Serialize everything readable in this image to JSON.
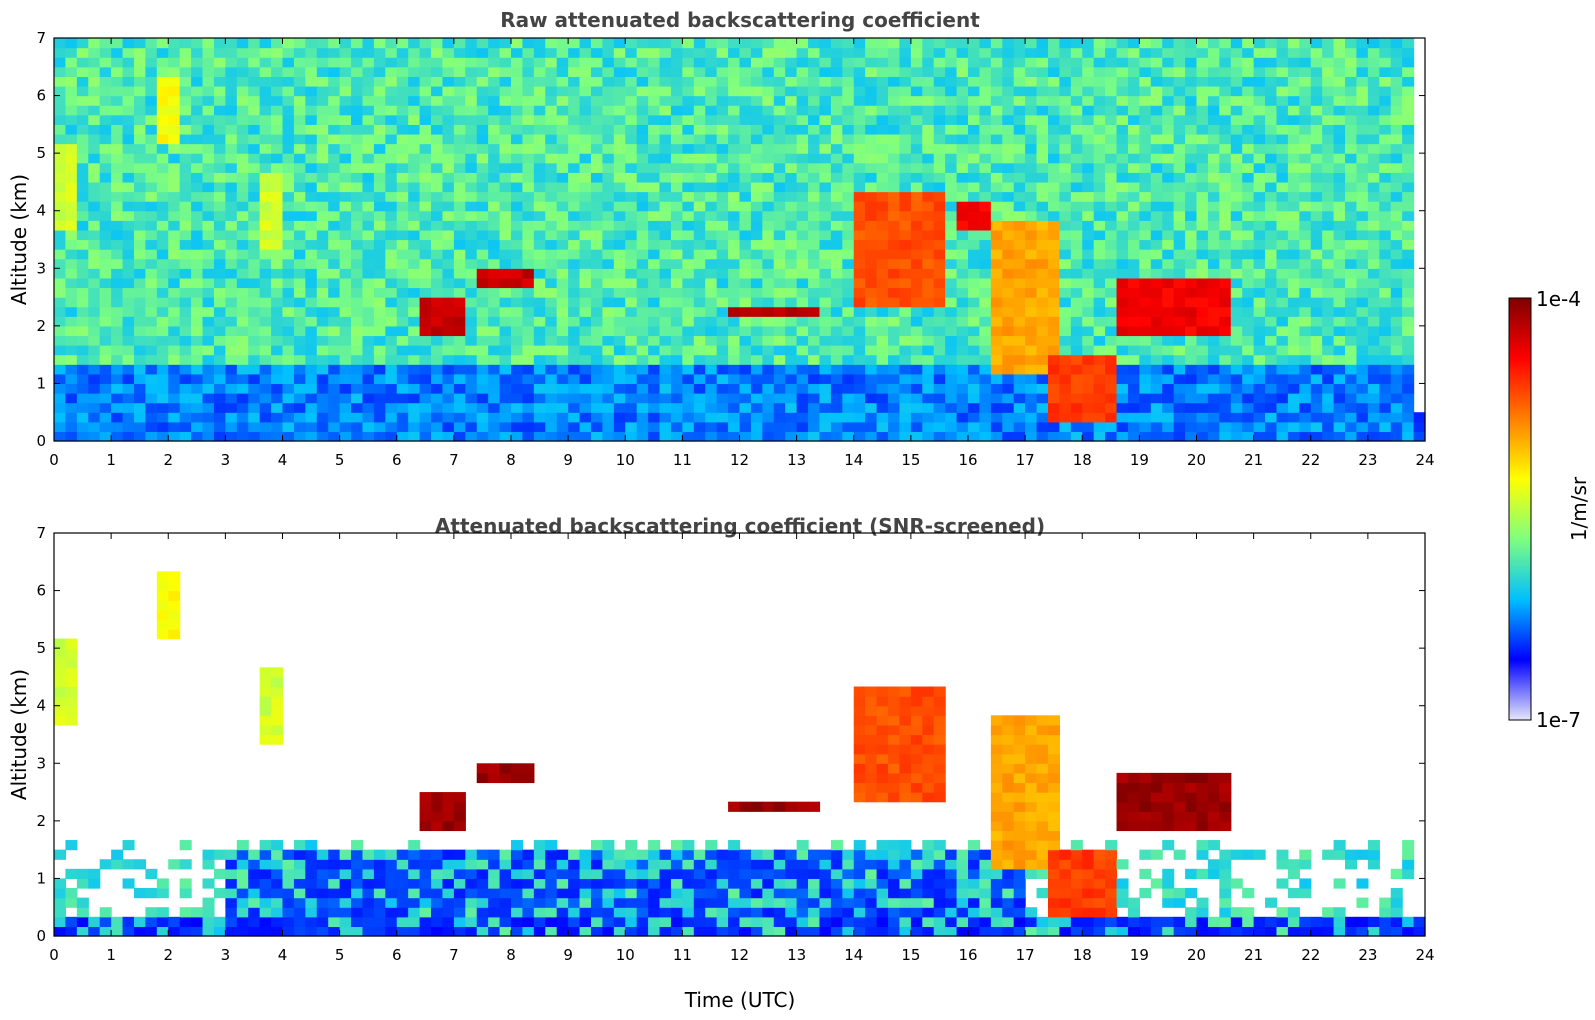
{
  "chart_data": [
    {
      "type": "heatmap",
      "title": "Raw attenuated backscattering coefficient",
      "xlabel": "",
      "ylabel": "Altitude (km)",
      "xlim": [
        0,
        24
      ],
      "ylim": [
        0,
        7
      ],
      "xticks": [
        "0",
        "1",
        "2",
        "3",
        "4",
        "5",
        "6",
        "7",
        "8",
        "9",
        "10",
        "11",
        "12",
        "13",
        "14",
        "15",
        "16",
        "17",
        "18",
        "19",
        "20",
        "21",
        "22",
        "23",
        "24"
      ],
      "yticks": [
        "0",
        "1",
        "2",
        "3",
        "4",
        "5",
        "6",
        "7"
      ],
      "features": [
        {
          "t0": 0.0,
          "t1": 24.0,
          "z0": 0.0,
          "z1": 0.5,
          "level": 0.22
        },
        {
          "t0": 0.0,
          "t1": 0.4,
          "z0": 3.7,
          "z1": 5.2,
          "level": 0.55
        },
        {
          "t0": 1.9,
          "t1": 2.2,
          "z0": 5.1,
          "z1": 6.3,
          "level": 0.6
        },
        {
          "t0": 3.7,
          "t1": 4.1,
          "z0": 3.4,
          "z1": 4.7,
          "level": 0.55
        },
        {
          "t0": 5.4,
          "t1": 5.8,
          "z0": 1.9,
          "z1": 2.9,
          "level": 0.45
        },
        {
          "t0": 6.4,
          "t1": 7.2,
          "z0": 1.9,
          "z1": 2.5,
          "level": 0.95
        },
        {
          "t0": 7.5,
          "t1": 8.4,
          "z0": 2.6,
          "z1": 3.0,
          "level": 0.95
        },
        {
          "t0": 11.8,
          "t1": 13.3,
          "z0": 2.1,
          "z1": 2.3,
          "level": 0.97
        },
        {
          "t0": 14.0,
          "t1": 15.6,
          "z0": 2.3,
          "z1": 4.3,
          "level": 0.8
        },
        {
          "t0": 15.8,
          "t1": 16.4,
          "z0": 3.6,
          "z1": 4.2,
          "level": 0.9
        },
        {
          "t0": 16.5,
          "t1": 17.5,
          "z0": 1.2,
          "z1": 3.8,
          "level": 0.7
        },
        {
          "t0": 17.5,
          "t1": 18.6,
          "z0": 0.4,
          "z1": 1.5,
          "level": 0.82
        },
        {
          "t0": 18.7,
          "t1": 20.5,
          "z0": 1.8,
          "z1": 2.8,
          "level": 0.9
        }
      ]
    },
    {
      "type": "heatmap",
      "title": "Attenuated backscattering coefficient (SNR-screened)",
      "xlabel": "Time (UTC)",
      "ylabel": "Altitude (km)",
      "xlim": [
        0,
        24
      ],
      "ylim": [
        0,
        7
      ],
      "xticks": [
        "0",
        "1",
        "2",
        "3",
        "4",
        "5",
        "6",
        "7",
        "8",
        "9",
        "10",
        "11",
        "12",
        "13",
        "14",
        "15",
        "16",
        "17",
        "18",
        "19",
        "20",
        "21",
        "22",
        "23",
        "24"
      ],
      "yticks": [
        "0",
        "1",
        "2",
        "3",
        "4",
        "5",
        "6",
        "7"
      ],
      "features": [
        {
          "t0": 0.0,
          "t1": 24.0,
          "z0": 0.0,
          "z1": 0.3,
          "level": 0.2
        },
        {
          "t0": 3.0,
          "t1": 17.0,
          "z0": 0.3,
          "z1": 1.5,
          "level": 0.22
        },
        {
          "t0": 0.0,
          "t1": 0.4,
          "z0": 3.7,
          "z1": 5.2,
          "level": 0.55
        },
        {
          "t0": 1.9,
          "t1": 2.2,
          "z0": 5.1,
          "z1": 6.3,
          "level": 0.6
        },
        {
          "t0": 3.7,
          "t1": 4.1,
          "z0": 3.4,
          "z1": 4.7,
          "level": 0.55
        },
        {
          "t0": 6.4,
          "t1": 7.2,
          "z0": 1.9,
          "z1": 2.5,
          "level": 1.0
        },
        {
          "t0": 7.5,
          "t1": 8.4,
          "z0": 2.6,
          "z1": 3.0,
          "level": 1.0
        },
        {
          "t0": 11.8,
          "t1": 13.3,
          "z0": 2.1,
          "z1": 2.3,
          "level": 1.0
        },
        {
          "t0": 14.0,
          "t1": 15.6,
          "z0": 2.3,
          "z1": 4.3,
          "level": 0.8
        },
        {
          "t0": 16.5,
          "t1": 17.5,
          "z0": 1.2,
          "z1": 3.8,
          "level": 0.7
        },
        {
          "t0": 17.5,
          "t1": 18.6,
          "z0": 0.4,
          "z1": 1.5,
          "level": 0.82
        },
        {
          "t0": 18.7,
          "t1": 20.5,
          "z0": 1.8,
          "z1": 2.8,
          "level": 1.0
        }
      ]
    }
  ],
  "colorbar": {
    "label": "1/m/sr",
    "min_label": "1e-7",
    "max_label": "1e-4",
    "colors": [
      "#e6e6fa",
      "#0000ff",
      "#00bfff",
      "#7fff7f",
      "#ffff00",
      "#ff7f00",
      "#ff0000",
      "#7f0000"
    ]
  }
}
